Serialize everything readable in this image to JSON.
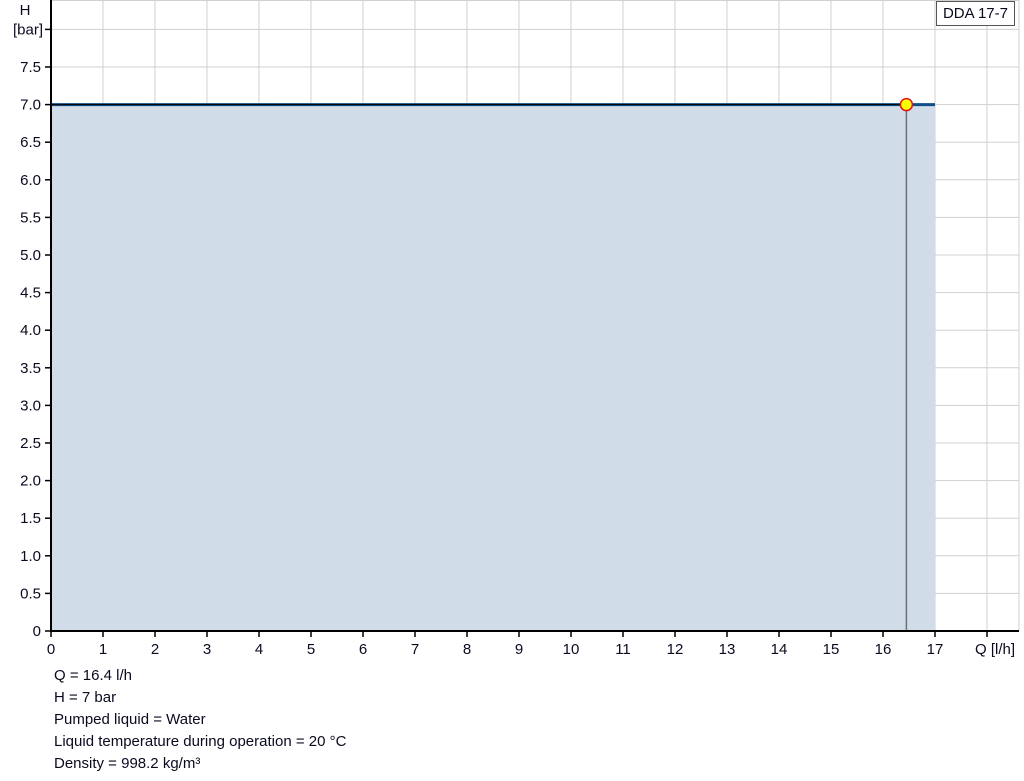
{
  "chart_data": {
    "type": "area",
    "title": "",
    "xlabel": "Q [l/h]",
    "ylabel_line1": "H",
    "ylabel_line2": "[bar]",
    "xlim": [
      0,
      18.6
    ],
    "ylim": [
      0,
      8.4
    ],
    "grid": true,
    "x_ticks": [
      "0",
      "1",
      "2",
      "3",
      "4",
      "5",
      "6",
      "7",
      "8",
      "9",
      "10",
      "11",
      "12",
      "13",
      "14",
      "15",
      "16",
      "17"
    ],
    "y_ticks": [
      "0",
      "0.5",
      "1.0",
      "1.5",
      "2.0",
      "2.5",
      "3.0",
      "3.5",
      "4.0",
      "4.5",
      "5.0",
      "5.5",
      "6.0",
      "6.5",
      "7.0",
      "7.5"
    ],
    "series": [
      {
        "name": "DDA 17-7",
        "x": [
          0,
          17
        ],
        "y": [
          7.0,
          7.0
        ],
        "color": "#0b4f86",
        "fill": "#d0dce7"
      }
    ],
    "operating_point": {
      "x": 16.45,
      "y": 7.0,
      "fill": "#ffff00",
      "stroke": "#e0141e"
    },
    "legend": {
      "label": "DDA 17-7",
      "placement": "top-right"
    }
  },
  "info": [
    "Q = 16.4 l/h",
    "H = 7 bar",
    "Pumped liquid = Water",
    "Liquid temperature during operation = 20 °C",
    "Density = 998.2 kg/m³"
  ]
}
